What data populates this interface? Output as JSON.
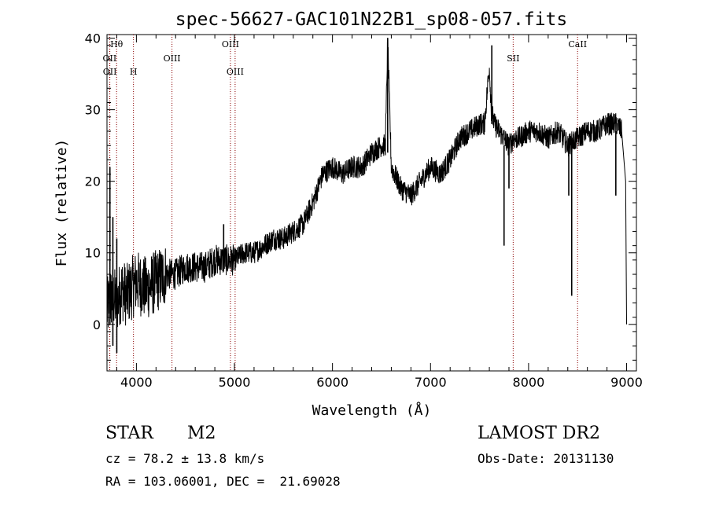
{
  "chart_data": {
    "type": "line",
    "title": "spec-56627-GAC101N22B1_sp08-057.fits",
    "xlabel": "Wavelength (Å)",
    "ylabel": "Flux (relative)",
    "xlim": [
      3700,
      9100
    ],
    "ylim": [
      -6.5,
      40.5
    ],
    "x_ticks": [
      4000,
      5000,
      6000,
      7000,
      8000,
      9000
    ],
    "x_tick_labels": [
      "4000",
      "5000",
      "6000",
      "7000",
      "8000",
      "9000"
    ],
    "y_ticks": [
      0,
      10,
      20,
      30,
      40
    ],
    "y_tick_labels": [
      "0",
      "10",
      "20",
      "30",
      "40"
    ],
    "grid": false,
    "series": [
      {
        "color": "#000000",
        "x": [
          3700,
          3750,
          3800,
          3850,
          3900,
          3950,
          4000,
          4100,
          4200,
          4300,
          4400,
          4500,
          4600,
          4700,
          4800,
          4900,
          5000,
          5100,
          5200,
          5300,
          5400,
          5500,
          5600,
          5700,
          5800,
          5900,
          6000,
          6100,
          6200,
          6300,
          6400,
          6500,
          6540,
          6563,
          6600,
          6700,
          6800,
          6900,
          7000,
          7100,
          7200,
          7300,
          7400,
          7500,
          7550,
          7600,
          7620,
          7650,
          7700,
          7750,
          7800,
          7850,
          7900,
          8000,
          8100,
          8200,
          8300,
          8400,
          8500,
          8600,
          8700,
          8800,
          8900,
          8950,
          9000
        ],
        "y": [
          2,
          4,
          3,
          5,
          4,
          5,
          6,
          5,
          6,
          7,
          7,
          8,
          8,
          8,
          9,
          9,
          9,
          10,
          10,
          11,
          12,
          12,
          13,
          14,
          17,
          21,
          22,
          21,
          22,
          22,
          24,
          25,
          25,
          40,
          22,
          19,
          18,
          20,
          22,
          21,
          23,
          26,
          27,
          28,
          28,
          36,
          30,
          28,
          27,
          26,
          25,
          26,
          26,
          27,
          27,
          26,
          27,
          25,
          26,
          27,
          27,
          28,
          28,
          27,
          0
        ]
      }
    ],
    "spikes": [
      {
        "x": 6563,
        "y_min": 24,
        "y_max": 40
      },
      {
        "x": 7625,
        "y_min": 28,
        "y_max": 39
      },
      {
        "x": 7750,
        "y_min": 11,
        "y_max": 25
      },
      {
        "x": 7800,
        "y_min": 19,
        "y_max": 26
      },
      {
        "x": 8410,
        "y_min": 18,
        "y_max": 26
      },
      {
        "x": 8440,
        "y_min": 4,
        "y_max": 25
      },
      {
        "x": 8890,
        "y_min": 18,
        "y_max": 27
      },
      {
        "x": 4890,
        "y_min": 9,
        "y_max": 14
      },
      {
        "x": 3760,
        "y_min": -3,
        "y_max": 15
      },
      {
        "x": 3800,
        "y_min": -4,
        "y_max": 12
      },
      {
        "x": 3730,
        "y_min": 0,
        "y_max": 22
      }
    ],
    "line_markers": [
      {
        "label": "Hθ",
        "x": 3798,
        "row": 0
      },
      {
        "label": "OII",
        "x": 3727,
        "row": 1
      },
      {
        "label": "OII",
        "x": 3729,
        "row": 2
      },
      {
        "label": "H",
        "x": 3970,
        "row": 2
      },
      {
        "label": "OIII",
        "x": 4363,
        "row": 1
      },
      {
        "label": "OIII",
        "x": 4959,
        "row": 0
      },
      {
        "label": "OIII",
        "x": 5007,
        "row": 2
      },
      {
        "label": "SII",
        "x": 7843,
        "row": 1
      },
      {
        "label": "CaII",
        "x": 8500,
        "row": 0
      }
    ],
    "marker_color": "#8b0000"
  },
  "info": {
    "object_class": "STAR",
    "subclass": "M2",
    "survey": "LAMOST DR2",
    "cz": "cz = 78.2 ± 13.8 km/s",
    "obs_date": "Obs-Date: 20131130",
    "coords": "RA = 103.06001, DEC =  21.69028"
  }
}
